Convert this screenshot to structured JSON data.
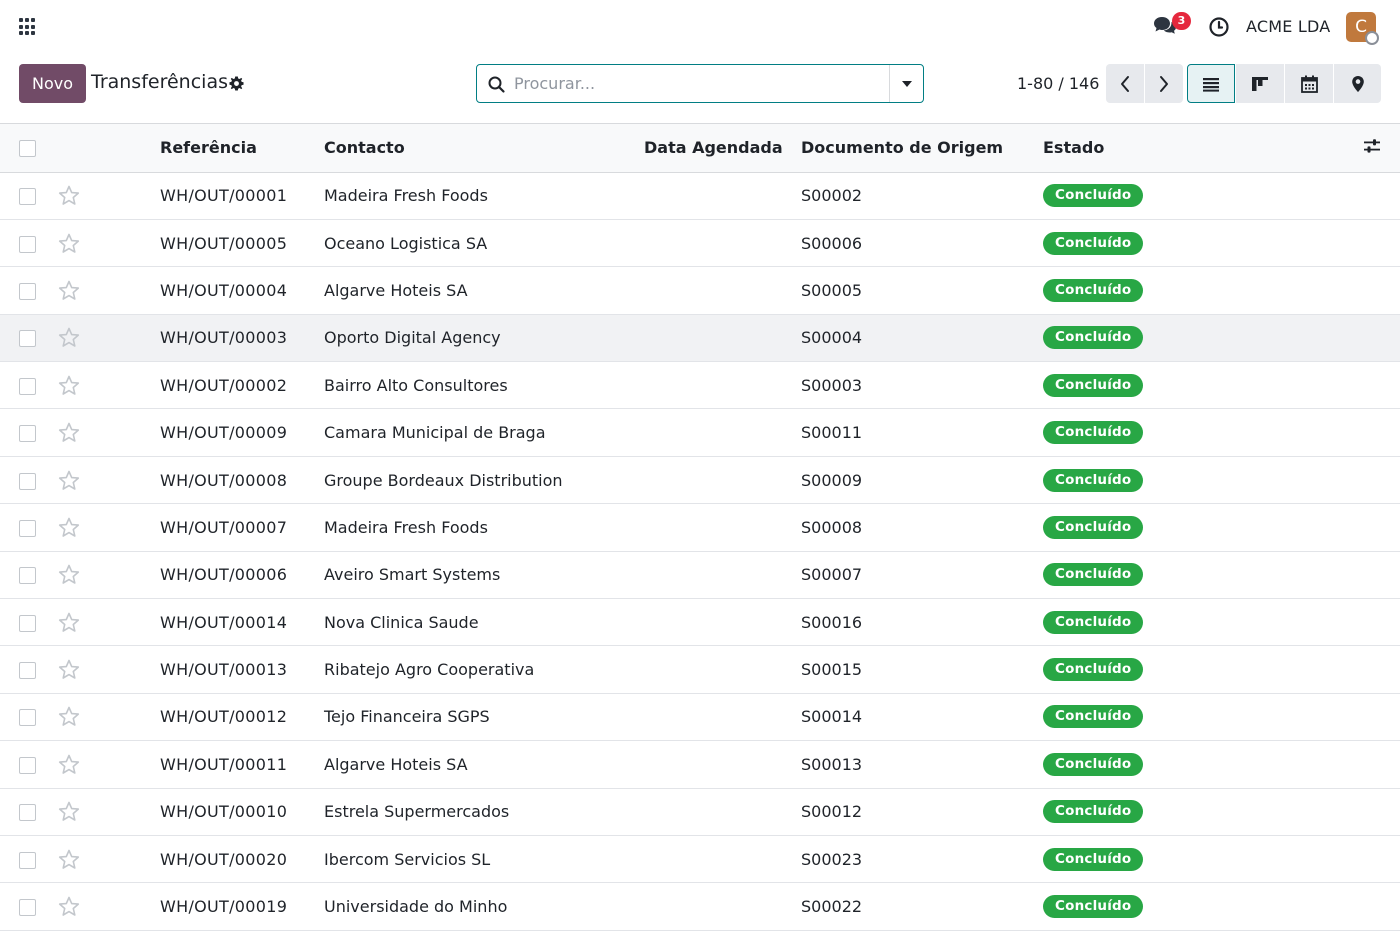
{
  "navbar": {
    "apps_icon": "grid-icon",
    "chat_icon": "chat-bubbles-icon",
    "chat_count": "3",
    "clock_icon": "clock-icon",
    "company": "ACME LDA",
    "avatar_initial": "C",
    "avatar_color": "#c0793d"
  },
  "control": {
    "new_label": "Novo",
    "title": "Transferências",
    "search_placeholder": "Procurar...",
    "pager": "1-80 / 146"
  },
  "colors": {
    "brand": "#714b67",
    "accent": "#017e84",
    "status_done": "#28a745",
    "badge": "#e5283d"
  },
  "table": {
    "headers": {
      "reference": "Referência",
      "contact": "Contacto",
      "scheduled": "Data Agendada",
      "origin": "Documento de Origem",
      "state": "Estado"
    },
    "rows": [
      {
        "ref": "WH/OUT/00001",
        "contact": "Madeira Fresh Foods",
        "date": "",
        "origin": "S00002",
        "state": "Concluído"
      },
      {
        "ref": "WH/OUT/00005",
        "contact": "Oceano Logistica SA",
        "date": "",
        "origin": "S00006",
        "state": "Concluído"
      },
      {
        "ref": "WH/OUT/00004",
        "contact": "Algarve Hoteis SA",
        "date": "",
        "origin": "S00005",
        "state": "Concluído"
      },
      {
        "ref": "WH/OUT/00003",
        "contact": "Oporto Digital Agency",
        "date": "",
        "origin": "S00004",
        "state": "Concluído"
      },
      {
        "ref": "WH/OUT/00002",
        "contact": "Bairro Alto Consultores",
        "date": "",
        "origin": "S00003",
        "state": "Concluído"
      },
      {
        "ref": "WH/OUT/00009",
        "contact": "Camara Municipal de Braga",
        "date": "",
        "origin": "S00011",
        "state": "Concluído"
      },
      {
        "ref": "WH/OUT/00008",
        "contact": "Groupe Bordeaux Distribution",
        "date": "",
        "origin": "S00009",
        "state": "Concluído"
      },
      {
        "ref": "WH/OUT/00007",
        "contact": "Madeira Fresh Foods",
        "date": "",
        "origin": "S00008",
        "state": "Concluído"
      },
      {
        "ref": "WH/OUT/00006",
        "contact": "Aveiro Smart Systems",
        "date": "",
        "origin": "S00007",
        "state": "Concluído"
      },
      {
        "ref": "WH/OUT/00014",
        "contact": "Nova Clinica Saude",
        "date": "",
        "origin": "S00016",
        "state": "Concluído"
      },
      {
        "ref": "WH/OUT/00013",
        "contact": "Ribatejo Agro Cooperativa",
        "date": "",
        "origin": "S00015",
        "state": "Concluído"
      },
      {
        "ref": "WH/OUT/00012",
        "contact": "Tejo Financeira SGPS",
        "date": "",
        "origin": "S00014",
        "state": "Concluído"
      },
      {
        "ref": "WH/OUT/00011",
        "contact": "Algarve Hoteis SA",
        "date": "",
        "origin": "S00013",
        "state": "Concluído"
      },
      {
        "ref": "WH/OUT/00010",
        "contact": "Estrela Supermercados",
        "date": "",
        "origin": "S00012",
        "state": "Concluído"
      },
      {
        "ref": "WH/OUT/00020",
        "contact": "Ibercom Servicios SL",
        "date": "",
        "origin": "S00023",
        "state": "Concluído"
      },
      {
        "ref": "WH/OUT/00019",
        "contact": "Universidade do Minho",
        "date": "",
        "origin": "S00022",
        "state": "Concluído"
      }
    ]
  }
}
